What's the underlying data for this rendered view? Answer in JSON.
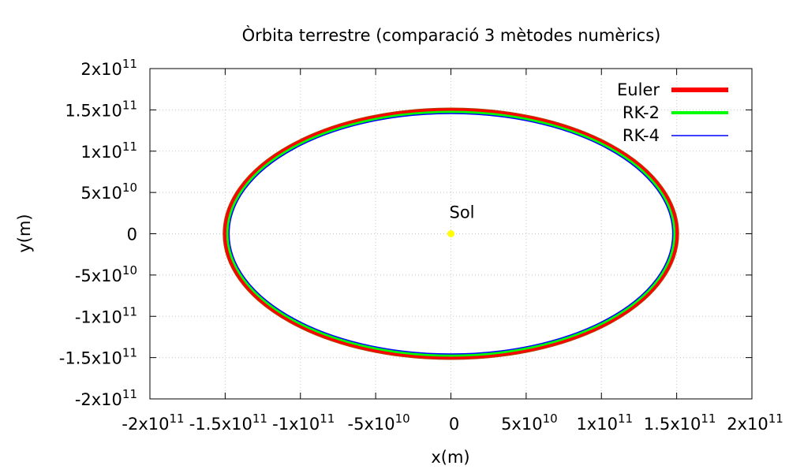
{
  "chart_data": {
    "type": "line",
    "title": "Òrbita terrestre (comparació 3 mètodes numèrics)",
    "xlabel": "x(m)",
    "ylabel": "y(m)",
    "xlim": [
      -200000000000.0,
      200000000000.0
    ],
    "ylim": [
      -200000000000.0,
      200000000000.0
    ],
    "grid": true,
    "legend_position": "top-right",
    "x_ticks": [
      {
        "value": -200000000000.0,
        "mantissa": "-2x10",
        "exp": "11"
      },
      {
        "value": -150000000000.0,
        "mantissa": "-1.5x10",
        "exp": "11"
      },
      {
        "value": -100000000000.0,
        "mantissa": "-1x10",
        "exp": "11"
      },
      {
        "value": -50000000000.0,
        "mantissa": "-5x10",
        "exp": "10"
      },
      {
        "value": 0,
        "mantissa": "0",
        "exp": ""
      },
      {
        "value": 50000000000.0,
        "mantissa": "5x10",
        "exp": "10"
      },
      {
        "value": 100000000000.0,
        "mantissa": "1x10",
        "exp": "11"
      },
      {
        "value": 150000000000.0,
        "mantissa": "1.5x10",
        "exp": "11"
      },
      {
        "value": 200000000000.0,
        "mantissa": "2x10",
        "exp": "11"
      }
    ],
    "y_ticks": [
      {
        "value": 200000000000.0,
        "mantissa": "2x10",
        "exp": "11"
      },
      {
        "value": 150000000000.0,
        "mantissa": "1.5x10",
        "exp": "11"
      },
      {
        "value": 100000000000.0,
        "mantissa": "1x10",
        "exp": "11"
      },
      {
        "value": 50000000000.0,
        "mantissa": "5x10",
        "exp": "10"
      },
      {
        "value": 0,
        "mantissa": "0",
        "exp": ""
      },
      {
        "value": -50000000000.0,
        "mantissa": "-5x10",
        "exp": "10"
      },
      {
        "value": -100000000000.0,
        "mantissa": "-1x10",
        "exp": "11"
      },
      {
        "value": -150000000000.0,
        "mantissa": "-1.5x10",
        "exp": "11"
      },
      {
        "value": -200000000000.0,
        "mantissa": "-2x10",
        "exp": "11"
      }
    ],
    "series": [
      {
        "name": "Euler",
        "color": "#ff0000",
        "center": [
          0,
          0
        ],
        "radius_x": 150200000000.0,
        "radius_y": 150200000000.0
      },
      {
        "name": "RK-2",
        "color": "#00ff00",
        "center": [
          0,
          0
        ],
        "radius_x": 149600000000.0,
        "radius_y": 149600000000.0
      },
      {
        "name": "RK-4",
        "color": "#0000ff",
        "center": [
          0,
          0
        ],
        "radius_x": 149600000000.0,
        "radius_y": 149600000000.0
      }
    ],
    "annotations": [
      {
        "text": "Sol",
        "x": 0,
        "y": 0,
        "marker_color": "#ffff00"
      }
    ]
  }
}
